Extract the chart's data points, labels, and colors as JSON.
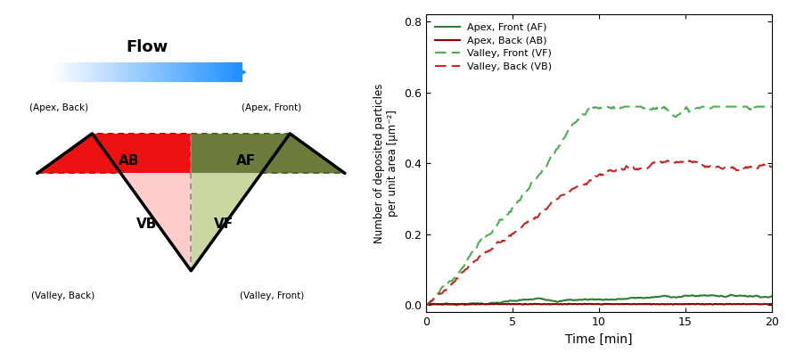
{
  "flow_label": "Flow",
  "arrow_color": "#1E90FF",
  "colors": {
    "AB_fill": "#EE1111",
    "AF_fill": "#6B7C3B",
    "VB_fill": "#FFCCCC",
    "VF_fill": "#C8D8A0"
  },
  "line_colors": {
    "AF": "#2E7D32",
    "AB": "#8B0000",
    "VF": "#4CAF50",
    "VB": "#C62828"
  },
  "ylabel": "Number of deposited particles\nper unit area [μm⁻²]",
  "xlabel": "Time [min]",
  "xlim": [
    0,
    20
  ],
  "ylim": [
    -0.02,
    0.82
  ],
  "yticks": [
    0.0,
    0.2,
    0.4,
    0.6,
    0.8
  ],
  "xticks": [
    0,
    5,
    10,
    15,
    20
  ],
  "legend": [
    {
      "label": "Apex, Front (AF)",
      "color": "#2E7D32",
      "linestyle": "solid"
    },
    {
      "label": "Apex, Back (AB)",
      "color": "#8B0000",
      "linestyle": "solid"
    },
    {
      "label": "Valley, Front (VF)",
      "color": "#4CAF50",
      "linestyle": "dashed"
    },
    {
      "label": "Valley, Back (VB)",
      "color": "#C62828",
      "linestyle": "dashed"
    }
  ],
  "corner_labels": {
    "apex_back": "(Apex, Back)",
    "apex_front": "(Apex, Front)",
    "valley_back": "(Valley, Back)",
    "valley_front": "(Valley, Front)"
  }
}
